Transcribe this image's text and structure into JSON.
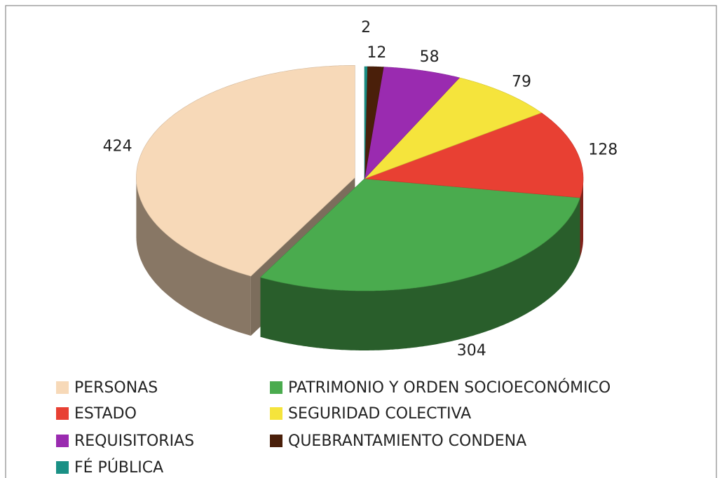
{
  "chart_data": {
    "type": "pie",
    "categories": [
      "PERSONAS",
      "PATRIMONIO Y ORDEN SOCIOECONÓMICO",
      "ESTADO",
      "SEGURIDAD COLECTIVA",
      "REQUISITORIAS",
      "QUEBRANTAMIENTO CONDENA",
      "FÉ PÚBLICA"
    ],
    "values": [
      424,
      304,
      128,
      79,
      58,
      12,
      2
    ],
    "colors": [
      "#f7d9b8",
      "#4aab4e",
      "#e84033",
      "#f5e43c",
      "#9a2bb0",
      "#4a1f0a",
      "#1a9085"
    ],
    "legend": "bottom"
  }
}
